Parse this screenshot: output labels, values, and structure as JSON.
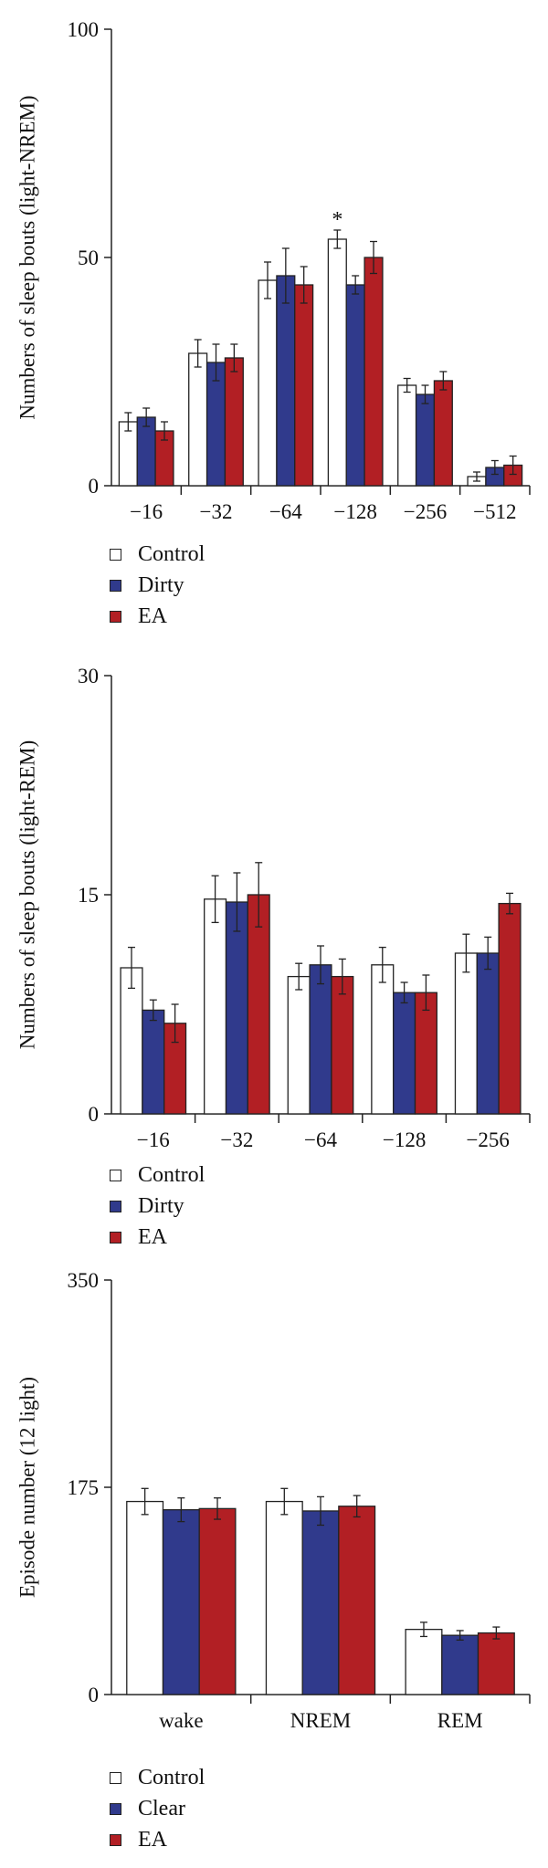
{
  "chart_data": [
    {
      "type": "bar",
      "ylabel": "Numbers of sleep bouts (light-NREM)",
      "ylim": [
        0,
        100
      ],
      "yticks": [
        0,
        50,
        100
      ],
      "categories": [
        "−16",
        "−32",
        "−64",
        "−128",
        "−256",
        "−512"
      ],
      "series": [
        {
          "name": "Control",
          "color": "#ffffff",
          "values": [
            14,
            29,
            45,
            54,
            22,
            2
          ],
          "errors": [
            2,
            3,
            4,
            2,
            1.5,
            1
          ]
        },
        {
          "name": "Dirty",
          "color": "#303a8c",
          "values": [
            15,
            27,
            46,
            44,
            20,
            4
          ],
          "errors": [
            2,
            4,
            6,
            2,
            2,
            1.5
          ]
        },
        {
          "name": "EA",
          "color": "#b21f24",
          "values": [
            12,
            28,
            44,
            50,
            23,
            4.5
          ],
          "errors": [
            2,
            3,
            4,
            3.5,
            2,
            2
          ]
        }
      ],
      "annotations": [
        {
          "category": "−128",
          "series": "Control",
          "text": "*"
        }
      ],
      "legend": [
        "Control",
        "Dirty",
        "EA"
      ]
    },
    {
      "type": "bar",
      "ylabel": "Numbers of sleep bouts (light-REM)",
      "ylim": [
        0,
        30
      ],
      "yticks": [
        0,
        15,
        30
      ],
      "categories": [
        "−16",
        "−32",
        "−64",
        "−128",
        "−256"
      ],
      "series": [
        {
          "name": "Control",
          "color": "#ffffff",
          "values": [
            10,
            14.7,
            9.4,
            10.2,
            11
          ],
          "errors": [
            1.4,
            1.6,
            0.9,
            1.2,
            1.3
          ]
        },
        {
          "name": "Dirty",
          "color": "#303a8c",
          "values": [
            7.1,
            14.5,
            10.2,
            8.3,
            11
          ],
          "errors": [
            0.7,
            2,
            1.3,
            0.7,
            1.1
          ]
        },
        {
          "name": "EA",
          "color": "#b21f24",
          "values": [
            6.2,
            15,
            9.4,
            8.3,
            14.4
          ],
          "errors": [
            1.3,
            2.2,
            1.2,
            1.2,
            0.7
          ]
        }
      ],
      "legend": [
        "Control",
        "Dirty",
        "EA"
      ]
    },
    {
      "type": "bar",
      "ylabel": "Episode number (12 light)",
      "ylim": [
        0,
        350
      ],
      "yticks": [
        0,
        175,
        350
      ],
      "categories": [
        "wake",
        "NREM",
        "REM"
      ],
      "series": [
        {
          "name": "Control",
          "color": "#ffffff",
          "values": [
            163,
            163,
            55
          ],
          "errors": [
            11,
            11,
            6
          ]
        },
        {
          "name": "Clear",
          "color": "#303a8c",
          "values": [
            156,
            155,
            50
          ],
          "errors": [
            10,
            12,
            4
          ]
        },
        {
          "name": "EA",
          "color": "#b21f24",
          "values": [
            157,
            159,
            52
          ],
          "errors": [
            9,
            9,
            5
          ]
        }
      ],
      "legend": [
        "Control",
        "Clear",
        "EA"
      ]
    }
  ]
}
